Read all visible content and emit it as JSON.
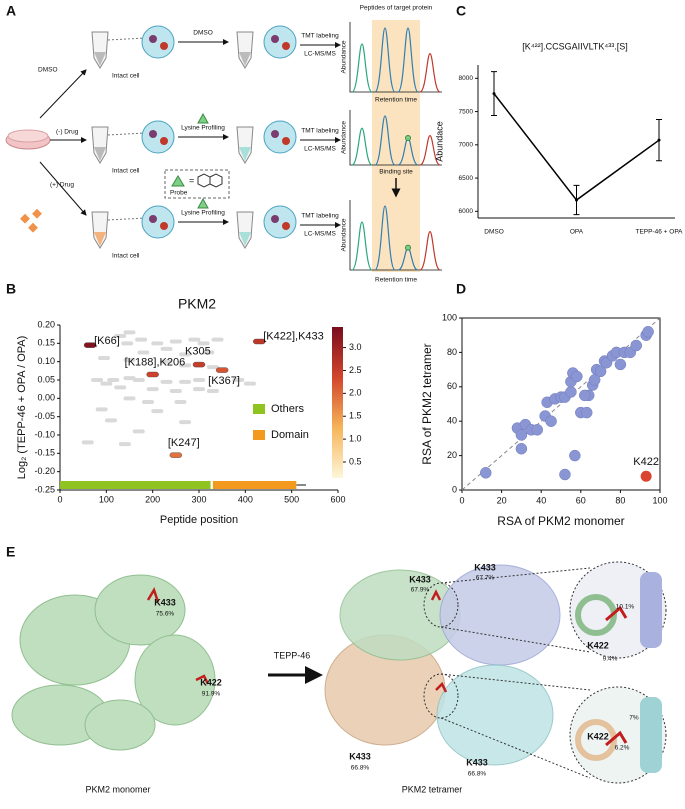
{
  "panel_labels": [
    "A",
    "B",
    "C",
    "D",
    "E"
  ],
  "panel_a": {
    "conditions": [
      "DMSO",
      "(-) Drug",
      "(+) Drug"
    ],
    "intact_cell": [
      "Intact cell",
      "Intact cell",
      "Intact cell"
    ],
    "treatments": [
      "DMSO",
      "Lysine Profiling",
      "Lysine Profiling"
    ],
    "tmt": [
      "TMT labeling",
      "TMT labeling",
      "TMT labeling"
    ],
    "lcms": [
      "LC-MS/MS",
      "LC-MS/MS",
      "LC-MS/MS"
    ],
    "chrom_title": "Peptides of target protein",
    "y_axis": [
      "Abundance",
      "Abundance",
      "Abundance"
    ],
    "x_axis": [
      "Retention time",
      "Retention time"
    ],
    "binding_site": "Binding site",
    "probe": "Probe",
    "equals": "="
  },
  "chart_data": [
    {
      "type": "heatscatter",
      "title": "PKM2",
      "xlabel": "Peptide position",
      "ylabel": "Log₂ (TEPP-46 + OPA / OPA)",
      "xlim": [
        0,
        600
      ],
      "xticks": [
        0,
        100,
        200,
        300,
        400,
        500,
        600
      ],
      "ylim": [
        -0.25,
        0.2
      ],
      "yticks": [
        -0.25,
        {
          "value": -0.2,
          "label": "-0.20"
        },
        -0.15,
        {
          "value": -0.1,
          "label": "-0.10"
        },
        -0.05,
        {
          "value": 0,
          "label": "0.00"
        },
        0.05,
        {
          "value": 0.1,
          "label": "0.10"
        },
        0.15,
        {
          "value": 0.2,
          "label": "0.20"
        }
      ],
      "background_color": "#d9d9d9",
      "peptides": {
        "x": [
          150,
          130,
          175,
          145,
          210,
          250,
          290,
          310,
          340,
          230,
          180,
          270,
          320,
          95,
          150,
          230,
          270,
          330,
          80,
          115,
          150,
          170,
          100,
          230,
          270,
          300,
          385,
          410,
          130,
          200,
          250,
          300,
          330,
          150,
          190,
          260,
          90,
          210,
          110,
          270,
          170,
          60,
          140
        ],
        "y": [
          0.18,
          0.17,
          0.16,
          0.15,
          0.15,
          0.155,
          0.16,
          0.15,
          0.16,
          0.135,
          0.125,
          0.12,
          0.125,
          0.11,
          0.105,
          0.1,
          0.09,
          0.085,
          0.05,
          0.05,
          0.055,
          0.05,
          0.04,
          0.045,
          0.045,
          0.05,
          0.05,
          0.04,
          0.03,
          0.025,
          0.02,
          0.025,
          0.02,
          0.0,
          -0.01,
          -0.01,
          -0.03,
          -0.035,
          -0.06,
          -0.065,
          -0.09,
          -0.12,
          -0.125
        ]
      },
      "highlighted": {
        "labels": [
          "[K66]",
          "[K188],K206",
          "K305",
          "[K367]",
          "[K422],K433",
          "[K247]"
        ],
        "x": [
          65,
          200,
          300,
          350,
          430,
          250
        ],
        "y": [
          0.145,
          0.065,
          0.092,
          0.077,
          0.155,
          -0.155
        ],
        "score": [
          3.3,
          2.4,
          2.5,
          2.2,
          2.6,
          1.9
        ]
      },
      "colorbar": {
        "lim": [
          0.15,
          3.45
        ],
        "colors": [
          "#fdf6d8",
          "#f6b45a",
          "#d2452c",
          "#7a0c1e"
        ],
        "ticks": [
          0.5,
          {
            "value": 1,
            "label": "1.0"
          },
          1.5,
          {
            "value": 2,
            "label": "2.0"
          },
          2.5,
          {
            "value": 3,
            "label": "3.0"
          }
        ]
      },
      "domains": [
        {
          "name": "Others",
          "color": "#8fc31f",
          "start": 0,
          "end": 325
        },
        {
          "name": "Domain",
          "color": "#f39a1e",
          "start": 330,
          "end": 510
        }
      ],
      "sequence_end": 531
    },
    {
      "type": "line",
      "title": "[K⁴²²].CCSGAIIVLTK⁴³³.[S]",
      "ylabel": "Abundace",
      "categories": [
        "DMSO",
        "OPA",
        "TEPP-46 + OPA"
      ],
      "values": [
        7770,
        6170,
        7070
      ],
      "errors": [
        330,
        220,
        310
      ],
      "color": "#000000",
      "ylim": [
        5900,
        8200
      ],
      "yticks": [
        6000,
        6500,
        7000,
        7500,
        8000
      ]
    },
    {
      "type": "scatter",
      "xlabel": "RSA of PKM2 monomer",
      "ylabel": "RSA of PKM2 tetramer",
      "xlim": [
        0,
        100
      ],
      "ylim": [
        0,
        100
      ],
      "xticks": [
        0,
        20,
        40,
        60,
        80,
        100
      ],
      "yticks": [
        0,
        20,
        40,
        60,
        80,
        100
      ],
      "color": "#8a96d4",
      "diagonal": true,
      "x": [
        12,
        28,
        30,
        30,
        32,
        35,
        38,
        42,
        45,
        43,
        47,
        50,
        52,
        55,
        52,
        57,
        55,
        56,
        58,
        60,
        63,
        64,
        66,
        67,
        68,
        70,
        72,
        73,
        76,
        78,
        80,
        82,
        85,
        88,
        93,
        94,
        62
      ],
      "y": [
        10,
        36,
        32,
        24,
        38,
        35,
        35,
        43,
        40,
        51,
        53,
        54,
        54,
        57,
        9,
        20,
        63,
        68,
        66,
        45,
        45,
        55,
        61,
        64,
        70,
        69,
        75,
        74,
        78,
        80,
        73,
        80,
        80,
        84,
        90,
        92,
        55
      ],
      "highlight": {
        "label": "K422",
        "x": 93,
        "y": 8,
        "color": "#d9432f"
      }
    }
  ],
  "panel_e": {
    "arrow_label": "TEPP-46",
    "captions": [
      "PKM2 monomer",
      "PKM2 tetramer"
    ],
    "monomer": [
      {
        "site": "K433",
        "rsa": "75.6%"
      },
      {
        "site": "K422",
        "rsa": "91.9%"
      }
    ],
    "tetramer": [
      {
        "site": "K433",
        "rsa": "67.9%"
      },
      {
        "site": "K433",
        "rsa": "67.7%"
      },
      {
        "site": "K433",
        "rsa": "66.8%"
      },
      {
        "site": "K433",
        "rsa": "66.8%"
      }
    ],
    "zoom_top": {
      "site": "K422",
      "rsa": [
        "10.1%",
        "9.4%"
      ]
    },
    "zoom_bottom": {
      "site": "K422",
      "rsa": [
        "7%",
        "6.2%"
      ]
    }
  }
}
